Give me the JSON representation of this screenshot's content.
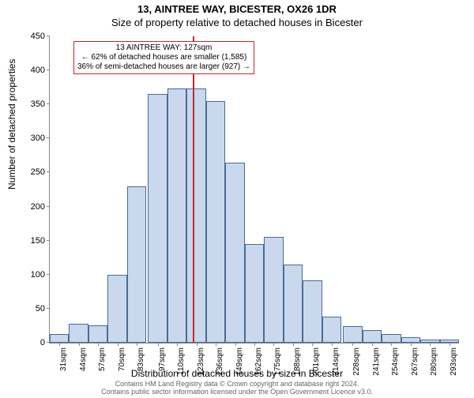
{
  "title1": "13, AINTREE WAY, BICESTER, OX26 1DR",
  "title2": "Size of property relative to detached houses in Bicester",
  "ylabel": "Number of detached properties",
  "xlabel": "Distribution of detached houses by size in Bicester",
  "footer1": "Contains HM Land Registry data © Crown copyright and database right 2024.",
  "footer2": "Contains public sector information licensed under the Open Government Licence v3.0.",
  "chart": {
    "type": "histogram",
    "ylim": [
      0,
      450
    ],
    "ytick_step": 50,
    "bar_fill": "#c9d8ec",
    "bar_stroke": "#4a6a9a",
    "refline_color": "#c62828",
    "refline_x": 127,
    "categories": [
      "31sqm",
      "44sqm",
      "57sqm",
      "70sqm",
      "83sqm",
      "97sqm",
      "110sqm",
      "123sqm",
      "136sqm",
      "149sqm",
      "162sqm",
      "175sqm",
      "188sqm",
      "201sqm",
      "214sqm",
      "228sqm",
      "241sqm",
      "254sqm",
      "267sqm",
      "280sqm",
      "293sqm"
    ],
    "x_values": [
      31,
      44,
      57,
      70,
      83,
      97,
      110,
      123,
      136,
      149,
      162,
      175,
      188,
      201,
      214,
      228,
      241,
      254,
      267,
      280,
      293
    ],
    "bin_width": 13,
    "values": [
      13,
      28,
      25,
      100,
      230,
      365,
      373,
      373,
      355,
      265,
      145,
      155,
      115,
      92,
      38,
      24,
      18,
      13,
      8,
      5,
      5
    ],
    "annotation_border": "#c62828",
    "annotation_lines": [
      "13 AINTREE WAY: 127sqm",
      "← 62% of detached houses are smaller (1,585)",
      "36% of semi-detached houses are larger (927) →"
    ]
  }
}
